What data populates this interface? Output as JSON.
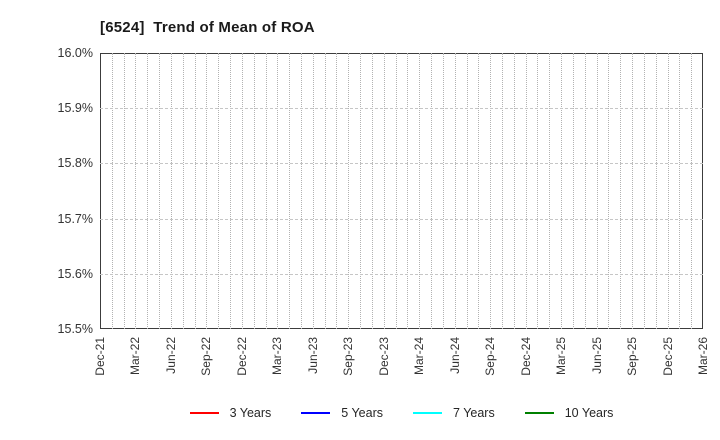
{
  "chart_data": {
    "type": "line",
    "title": "[6524]  Trend of Mean of ROA",
    "categories": [
      "Dec-21",
      "Mar-22",
      "Jun-22",
      "Sep-22",
      "Dec-22",
      "Mar-23",
      "Jun-23",
      "Sep-23",
      "Dec-23",
      "Mar-24",
      "Jun-24",
      "Sep-24",
      "Dec-24",
      "Mar-25",
      "Jun-25",
      "Sep-25",
      "Dec-25",
      "Mar-26"
    ],
    "y_tick_labels": [
      "16.0%",
      "15.9%",
      "15.8%",
      "15.7%",
      "15.6%",
      "15.5%"
    ],
    "ylim": [
      15.5,
      16.0
    ],
    "y_tick_step": 0.1,
    "xlabel": "",
    "ylabel": "",
    "grid": "on",
    "minor_x_divisions_per_quarter": 3,
    "legend_position": "bottom",
    "series": [
      {
        "name": "3 Years",
        "color": "#ff0000",
        "values": []
      },
      {
        "name": "5 Years",
        "color": "#0000ff",
        "values": []
      },
      {
        "name": "7 Years",
        "color": "#00ffff",
        "values": []
      },
      {
        "name": "10 Years",
        "color": "#008000",
        "values": []
      }
    ]
  },
  "colors": {
    "background": "#ffffff",
    "axis_frame": "#3c3c3c",
    "vertical_gridline": "#b2b2b2",
    "horizontal_gridline": "#c6c6c6",
    "tick_label": "#333333",
    "title_text": "#1a1a1a"
  }
}
